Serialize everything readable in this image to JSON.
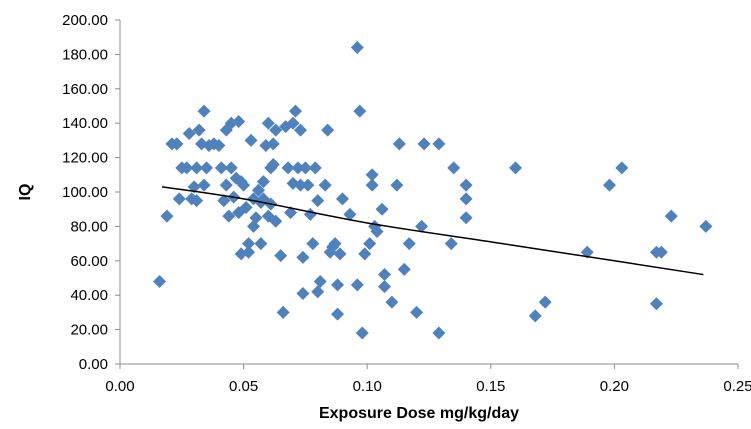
{
  "chart_data": {
    "type": "scatter",
    "xlabel": "Exposure Dose mg/kg/day",
    "ylabel": "IQ",
    "xlim": [
      0,
      0.25
    ],
    "ylim": [
      0,
      200
    ],
    "x_ticks": [
      "0.00",
      "0.05",
      "0.10",
      "0.15",
      "0.20",
      "0.25"
    ],
    "y_ticks": [
      "0.00",
      "20.00",
      "40.00",
      "60.00",
      "80.00",
      "100.00",
      "120.00",
      "140.00",
      "160.00",
      "180.00",
      "200.00"
    ],
    "grid": false,
    "legend": "none",
    "marker": "diamond",
    "marker_color": "#4f81bd",
    "trendline": {
      "type": "power-like curve",
      "color": "#000000",
      "points": [
        [
          0.017,
          103
        ],
        [
          0.05,
          96
        ],
        [
          0.1,
          82
        ],
        [
          0.15,
          71
        ],
        [
          0.2,
          60
        ],
        [
          0.236,
          52
        ]
      ]
    },
    "series": [
      {
        "points": [
          [
            0.016,
            48
          ],
          [
            0.019,
            86
          ],
          [
            0.021,
            128
          ],
          [
            0.023,
            128
          ],
          [
            0.024,
            96
          ],
          [
            0.025,
            114
          ],
          [
            0.027,
            114
          ],
          [
            0.028,
            134
          ],
          [
            0.029,
            96
          ],
          [
            0.03,
            103
          ],
          [
            0.031,
            114
          ],
          [
            0.031,
            95
          ],
          [
            0.032,
            136
          ],
          [
            0.033,
            128
          ],
          [
            0.034,
            147
          ],
          [
            0.035,
            114
          ],
          [
            0.034,
            104
          ],
          [
            0.036,
            127
          ],
          [
            0.038,
            128
          ],
          [
            0.04,
            127
          ],
          [
            0.041,
            114
          ],
          [
            0.042,
            95
          ],
          [
            0.043,
            104
          ],
          [
            0.043,
            136
          ],
          [
            0.044,
            86
          ],
          [
            0.045,
            140
          ],
          [
            0.045,
            114
          ],
          [
            0.046,
            97
          ],
          [
            0.047,
            108
          ],
          [
            0.048,
            141
          ],
          [
            0.048,
            88
          ],
          [
            0.049,
            106
          ],
          [
            0.049,
            64
          ],
          [
            0.05,
            104
          ],
          [
            0.051,
            91
          ],
          [
            0.052,
            65
          ],
          [
            0.052,
            70
          ],
          [
            0.053,
            130
          ],
          [
            0.054,
            96
          ],
          [
            0.054,
            80
          ],
          [
            0.055,
            85
          ],
          [
            0.056,
            101
          ],
          [
            0.057,
            94
          ],
          [
            0.057,
            70
          ],
          [
            0.058,
            106
          ],
          [
            0.058,
            96
          ],
          [
            0.059,
            127
          ],
          [
            0.06,
            86
          ],
          [
            0.06,
            140
          ],
          [
            0.061,
            114
          ],
          [
            0.061,
            93
          ],
          [
            0.062,
            116
          ],
          [
            0.062,
            128
          ],
          [
            0.063,
            136
          ],
          [
            0.063,
            83
          ],
          [
            0.065,
            63
          ],
          [
            0.066,
            30
          ],
          [
            0.067,
            138
          ],
          [
            0.068,
            114
          ],
          [
            0.069,
            88
          ],
          [
            0.07,
            105
          ],
          [
            0.07,
            140
          ],
          [
            0.071,
            147
          ],
          [
            0.072,
            114
          ],
          [
            0.073,
            104
          ],
          [
            0.073,
            136
          ],
          [
            0.074,
            62
          ],
          [
            0.074,
            41
          ],
          [
            0.075,
            114
          ],
          [
            0.076,
            104
          ],
          [
            0.077,
            87
          ],
          [
            0.078,
            70
          ],
          [
            0.079,
            114
          ],
          [
            0.08,
            42
          ],
          [
            0.08,
            95
          ],
          [
            0.081,
            48
          ],
          [
            0.083,
            104
          ],
          [
            0.084,
            136
          ],
          [
            0.085,
            65
          ],
          [
            0.086,
            68
          ],
          [
            0.087,
            70
          ],
          [
            0.088,
            46
          ],
          [
            0.088,
            29
          ],
          [
            0.089,
            64
          ],
          [
            0.09,
            96
          ],
          [
            0.093,
            87
          ],
          [
            0.096,
            46
          ],
          [
            0.096,
            184
          ],
          [
            0.097,
            147
          ],
          [
            0.098,
            18
          ],
          [
            0.099,
            64
          ],
          [
            0.101,
            70
          ],
          [
            0.102,
            104
          ],
          [
            0.102,
            110
          ],
          [
            0.103,
            80
          ],
          [
            0.104,
            77
          ],
          [
            0.106,
            90
          ],
          [
            0.107,
            52
          ],
          [
            0.107,
            45
          ],
          [
            0.11,
            36
          ],
          [
            0.112,
            104
          ],
          [
            0.113,
            128
          ],
          [
            0.115,
            55
          ],
          [
            0.117,
            70
          ],
          [
            0.12,
            30
          ],
          [
            0.122,
            80
          ],
          [
            0.123,
            128
          ],
          [
            0.129,
            18
          ],
          [
            0.129,
            128
          ],
          [
            0.134,
            70
          ],
          [
            0.135,
            114
          ],
          [
            0.14,
            104
          ],
          [
            0.14,
            96
          ],
          [
            0.14,
            85
          ],
          [
            0.16,
            114
          ],
          [
            0.168,
            28
          ],
          [
            0.172,
            36
          ],
          [
            0.189,
            65
          ],
          [
            0.198,
            104
          ],
          [
            0.203,
            114
          ],
          [
            0.217,
            35
          ],
          [
            0.217,
            65
          ],
          [
            0.219,
            65
          ],
          [
            0.223,
            86
          ],
          [
            0.237,
            80
          ]
        ]
      }
    ]
  }
}
